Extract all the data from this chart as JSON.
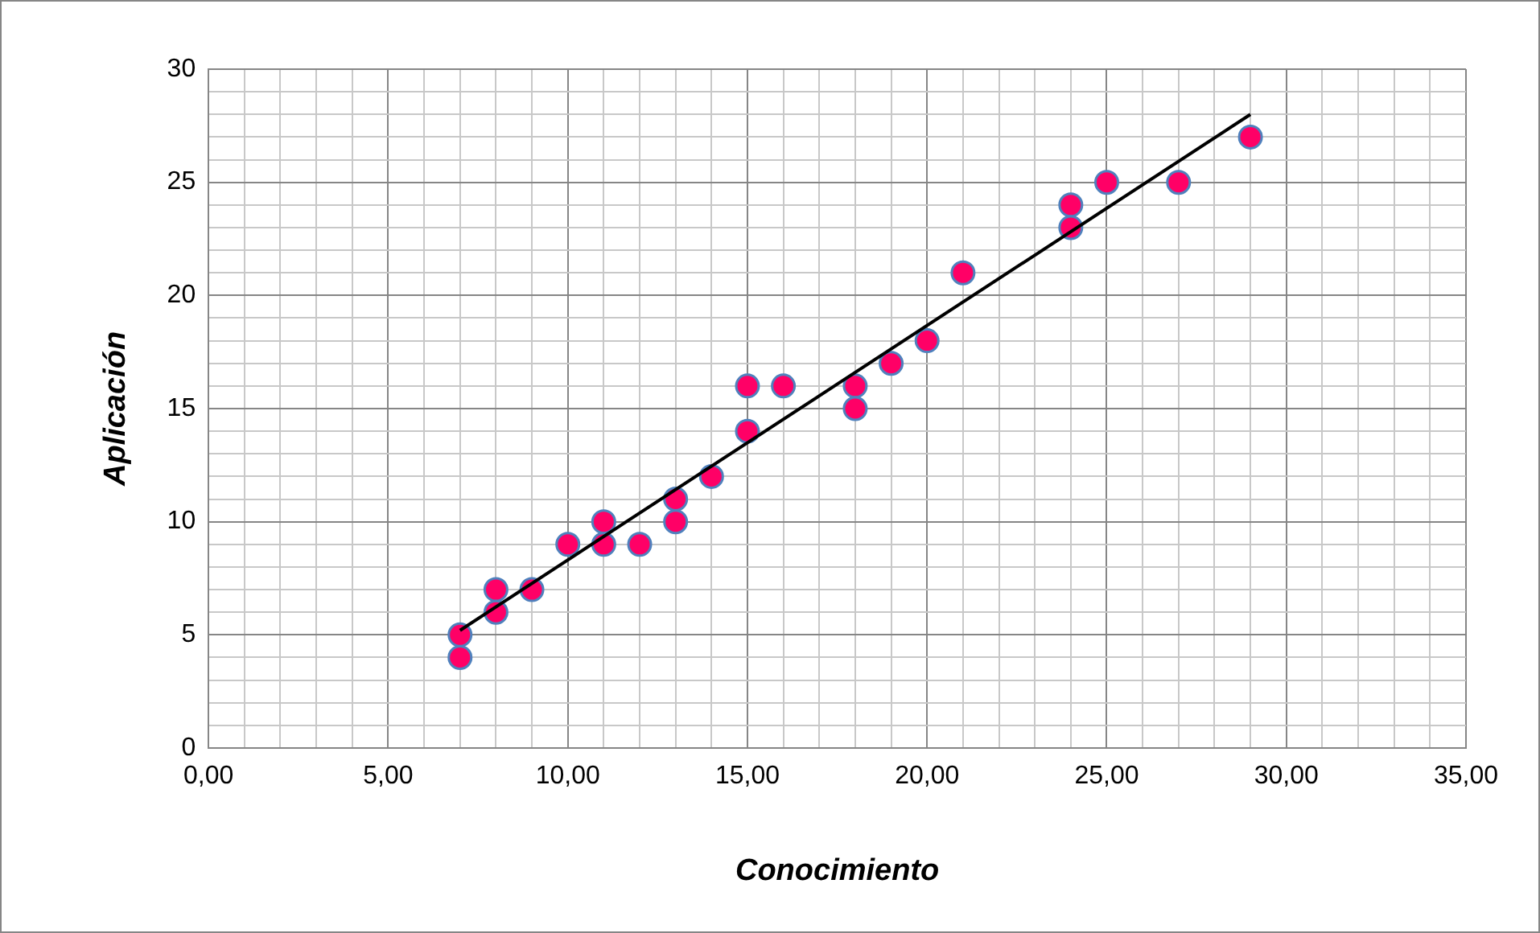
{
  "chart_data": {
    "type": "scatter",
    "xlabel": "Conocimiento",
    "ylabel": "Aplicación",
    "marker": "circle",
    "grid": true,
    "legend": false,
    "xlim": [
      0,
      35
    ],
    "ylim": [
      0,
      30
    ],
    "xticks": [
      {
        "value": 0,
        "label": "0,00"
      },
      {
        "value": 1,
        "label": null
      },
      {
        "value": 2,
        "label": null
      },
      {
        "value": 3,
        "label": null
      },
      {
        "value": 4,
        "label": null
      },
      {
        "value": 5,
        "label": "5,00"
      },
      {
        "value": 6,
        "label": null
      },
      {
        "value": 7,
        "label": null
      },
      {
        "value": 8,
        "label": null
      },
      {
        "value": 9,
        "label": null
      },
      {
        "value": 10,
        "label": "10,00"
      },
      {
        "value": 11,
        "label": null
      },
      {
        "value": 12,
        "label": null
      },
      {
        "value": 13,
        "label": null
      },
      {
        "value": 14,
        "label": null
      },
      {
        "value": 15,
        "label": "15,00"
      },
      {
        "value": 16,
        "label": null
      },
      {
        "value": 17,
        "label": null
      },
      {
        "value": 18,
        "label": null
      },
      {
        "value": 19,
        "label": null
      },
      {
        "value": 20,
        "label": "20,00"
      },
      {
        "value": 21,
        "label": null
      },
      {
        "value": 22,
        "label": null
      },
      {
        "value": 23,
        "label": null
      },
      {
        "value": 24,
        "label": null
      },
      {
        "value": 25,
        "label": "25,00"
      },
      {
        "value": 26,
        "label": null
      },
      {
        "value": 27,
        "label": null
      },
      {
        "value": 28,
        "label": null
      },
      {
        "value": 29,
        "label": null
      },
      {
        "value": 30,
        "label": "30,00"
      },
      {
        "value": 31,
        "label": null
      },
      {
        "value": 32,
        "label": null
      },
      {
        "value": 33,
        "label": null
      },
      {
        "value": 34,
        "label": null
      },
      {
        "value": 35,
        "label": "35,00"
      }
    ],
    "yticks": [
      0,
      {
        "value": 1,
        "label": null
      },
      {
        "value": 2,
        "label": null
      },
      {
        "value": 3,
        "label": null
      },
      {
        "value": 4,
        "label": null
      },
      5,
      {
        "value": 6,
        "label": null
      },
      {
        "value": 7,
        "label": null
      },
      {
        "value": 8,
        "label": null
      },
      {
        "value": 9,
        "label": null
      },
      10,
      {
        "value": 11,
        "label": null
      },
      {
        "value": 12,
        "label": null
      },
      {
        "value": 13,
        "label": null
      },
      {
        "value": 14,
        "label": null
      },
      15,
      {
        "value": 16,
        "label": null
      },
      {
        "value": 17,
        "label": null
      },
      {
        "value": 18,
        "label": null
      },
      {
        "value": 19,
        "label": null
      },
      20,
      {
        "value": 21,
        "label": null
      },
      {
        "value": 22,
        "label": null
      },
      {
        "value": 23,
        "label": null
      },
      {
        "value": 24,
        "label": null
      },
      25,
      {
        "value": 26,
        "label": null
      },
      {
        "value": 27,
        "label": null
      },
      {
        "value": 28,
        "label": null
      },
      {
        "value": 29,
        "label": null
      },
      30
    ],
    "series": [
      {
        "type": "scatter",
        "color": "#ff0066",
        "x": [
          7,
          7,
          8,
          8,
          9,
          10,
          11,
          11,
          12,
          13,
          13,
          14,
          15,
          15,
          16,
          18,
          18,
          19,
          20,
          21,
          24,
          24,
          25,
          27,
          29
        ],
        "values": [
          5,
          4,
          7,
          6,
          7,
          9,
          10,
          9,
          9,
          11,
          10,
          12,
          16,
          14,
          16,
          16,
          15,
          17,
          18,
          21,
          24,
          23,
          25,
          25,
          27
        ]
      },
      {
        "type": "line",
        "color": "#000000",
        "line_style": "solid",
        "marker": "none",
        "x": [
          7,
          29
        ],
        "values": [
          5.2,
          28
        ]
      }
    ]
  }
}
